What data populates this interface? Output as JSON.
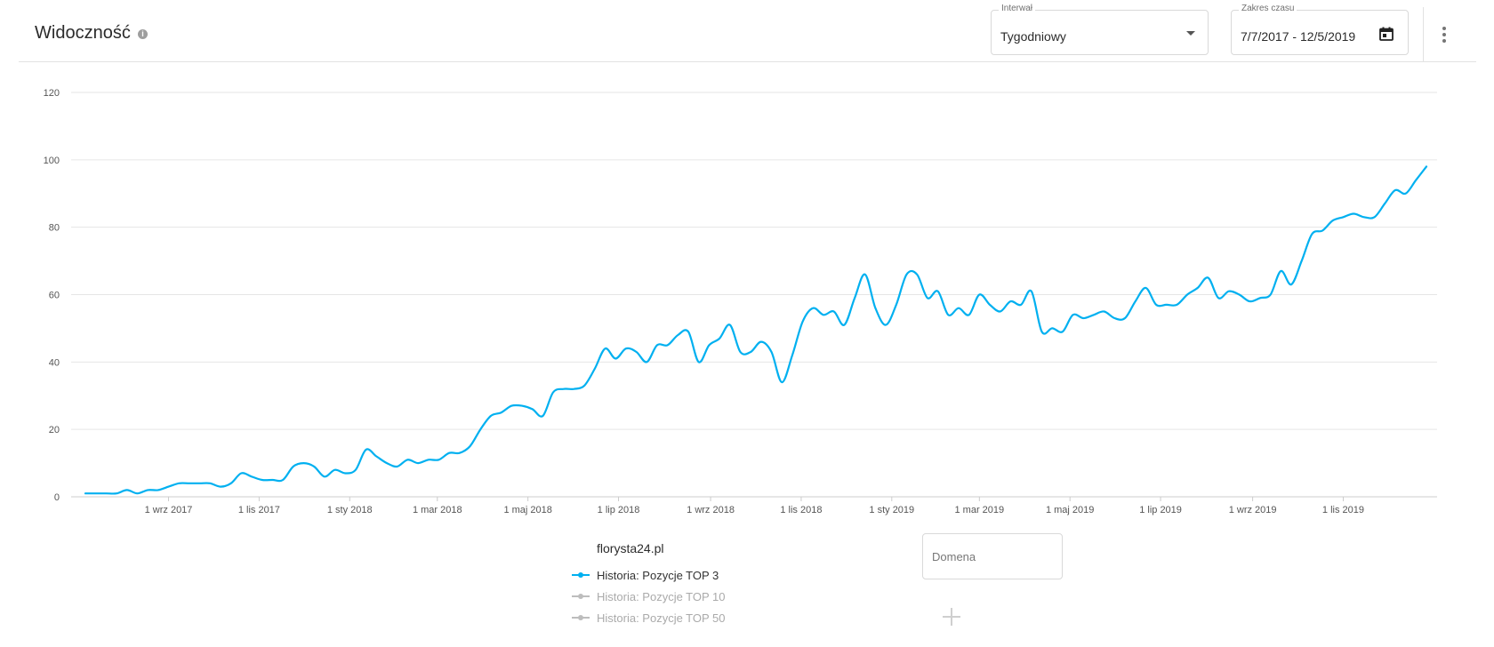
{
  "header": {
    "title": "Widoczność",
    "interval": {
      "legend": "Interwał",
      "value": "Tygodniowy"
    },
    "date_range": {
      "legend": "Zakres czasu",
      "value": "7/7/2017 - 12/5/2019"
    }
  },
  "legend": {
    "title": "florysta24.pl",
    "items": [
      {
        "label": "Historia: Pozycje TOP 3",
        "color": "#00b0f0",
        "active": true
      },
      {
        "label": "Historia: Pozycje TOP 10",
        "color": "#bdbdbd",
        "active": false
      },
      {
        "label": "Historia: Pozycje TOP 50",
        "color": "#bdbdbd",
        "active": false
      }
    ]
  },
  "domain_input": {
    "placeholder": "Domena"
  },
  "colors": {
    "line": "#00b0f0",
    "grid": "#e6e6e6",
    "axis": "#cccccc"
  },
  "icons": {
    "info": "info-icon",
    "dropdown": "chevron-down-icon",
    "calendar": "calendar-icon",
    "more": "more-vertical-icon",
    "add": "plus-icon"
  },
  "chart_data": {
    "type": "line",
    "title": "Widoczność",
    "xlabel": "",
    "ylabel": "",
    "ylim": [
      0,
      120
    ],
    "yticks": [
      0,
      20,
      40,
      60,
      80,
      100,
      120
    ],
    "xlim": [
      "2017-07-07",
      "2019-12-05"
    ],
    "xticks": [
      {
        "label": "1 wrz 2017",
        "date": "2017-09-01"
      },
      {
        "label": "1 lis 2017",
        "date": "2017-11-01"
      },
      {
        "label": "1 sty 2018",
        "date": "2018-01-01"
      },
      {
        "label": "1 mar 2018",
        "date": "2018-03-01"
      },
      {
        "label": "1 maj 2018",
        "date": "2018-05-01"
      },
      {
        "label": "1 lip 2018",
        "date": "2018-07-01"
      },
      {
        "label": "1 wrz 2018",
        "date": "2018-09-01"
      },
      {
        "label": "1 lis 2018",
        "date": "2018-11-01"
      },
      {
        "label": "1 sty 2019",
        "date": "2019-01-01"
      },
      {
        "label": "1 mar 2019",
        "date": "2019-03-01"
      },
      {
        "label": "1 maj 2019",
        "date": "2019-05-01"
      },
      {
        "label": "1 lip 2019",
        "date": "2019-07-01"
      },
      {
        "label": "1 wrz 2019",
        "date": "2019-09-01"
      },
      {
        "label": "1 lis 2019",
        "date": "2019-11-01"
      }
    ],
    "grid": true,
    "series": [
      {
        "name": "Historia: Pozycje TOP 3",
        "points": [
          [
            "2017-07-07",
            1
          ],
          [
            "2017-07-14",
            1
          ],
          [
            "2017-07-21",
            1
          ],
          [
            "2017-07-28",
            1
          ],
          [
            "2017-08-04",
            2
          ],
          [
            "2017-08-11",
            1
          ],
          [
            "2017-08-18",
            2
          ],
          [
            "2017-08-25",
            2
          ],
          [
            "2017-09-01",
            3
          ],
          [
            "2017-09-08",
            4
          ],
          [
            "2017-09-15",
            4
          ],
          [
            "2017-09-22",
            4
          ],
          [
            "2017-09-29",
            4
          ],
          [
            "2017-10-06",
            3
          ],
          [
            "2017-10-13",
            4
          ],
          [
            "2017-10-20",
            7
          ],
          [
            "2017-10-27",
            6
          ],
          [
            "2017-11-03",
            5
          ],
          [
            "2017-11-10",
            5
          ],
          [
            "2017-11-17",
            5
          ],
          [
            "2017-11-24",
            9
          ],
          [
            "2017-12-01",
            10
          ],
          [
            "2017-12-08",
            9
          ],
          [
            "2017-12-15",
            6
          ],
          [
            "2017-12-22",
            8
          ],
          [
            "2017-12-29",
            7
          ],
          [
            "2018-01-05",
            8
          ],
          [
            "2018-01-12",
            14
          ],
          [
            "2018-01-19",
            12
          ],
          [
            "2018-01-26",
            10
          ],
          [
            "2018-02-02",
            9
          ],
          [
            "2018-02-09",
            11
          ],
          [
            "2018-02-16",
            10
          ],
          [
            "2018-02-23",
            11
          ],
          [
            "2018-03-02",
            11
          ],
          [
            "2018-03-09",
            13
          ],
          [
            "2018-03-16",
            13
          ],
          [
            "2018-03-23",
            15
          ],
          [
            "2018-03-30",
            20
          ],
          [
            "2018-04-06",
            24
          ],
          [
            "2018-04-13",
            25
          ],
          [
            "2018-04-20",
            27
          ],
          [
            "2018-04-27",
            27
          ],
          [
            "2018-05-04",
            26
          ],
          [
            "2018-05-11",
            24
          ],
          [
            "2018-05-18",
            31
          ],
          [
            "2018-05-25",
            32
          ],
          [
            "2018-06-01",
            32
          ],
          [
            "2018-06-08",
            33
          ],
          [
            "2018-06-15",
            38
          ],
          [
            "2018-06-22",
            44
          ],
          [
            "2018-06-29",
            41
          ],
          [
            "2018-07-06",
            44
          ],
          [
            "2018-07-13",
            43
          ],
          [
            "2018-07-20",
            40
          ],
          [
            "2018-07-27",
            45
          ],
          [
            "2018-08-03",
            45
          ],
          [
            "2018-08-10",
            48
          ],
          [
            "2018-08-17",
            49
          ],
          [
            "2018-08-24",
            40
          ],
          [
            "2018-08-31",
            45
          ],
          [
            "2018-09-07",
            47
          ],
          [
            "2018-09-14",
            51
          ],
          [
            "2018-09-21",
            43
          ],
          [
            "2018-09-28",
            43
          ],
          [
            "2018-10-05",
            46
          ],
          [
            "2018-10-12",
            43
          ],
          [
            "2018-10-19",
            34
          ],
          [
            "2018-10-26",
            42
          ],
          [
            "2018-11-02",
            52
          ],
          [
            "2018-11-09",
            56
          ],
          [
            "2018-11-16",
            54
          ],
          [
            "2018-11-23",
            55
          ],
          [
            "2018-11-30",
            51
          ],
          [
            "2018-12-07",
            59
          ],
          [
            "2018-12-14",
            66
          ],
          [
            "2018-12-21",
            56
          ],
          [
            "2018-12-28",
            51
          ],
          [
            "2019-01-04",
            57
          ],
          [
            "2019-01-11",
            66
          ],
          [
            "2019-01-18",
            66
          ],
          [
            "2019-01-25",
            59
          ],
          [
            "2019-02-01",
            61
          ],
          [
            "2019-02-08",
            54
          ],
          [
            "2019-02-15",
            56
          ],
          [
            "2019-02-22",
            54
          ],
          [
            "2019-03-01",
            60
          ],
          [
            "2019-03-08",
            57
          ],
          [
            "2019-03-15",
            55
          ],
          [
            "2019-03-22",
            58
          ],
          [
            "2019-03-29",
            57
          ],
          [
            "2019-04-05",
            61
          ],
          [
            "2019-04-12",
            49
          ],
          [
            "2019-04-19",
            50
          ],
          [
            "2019-04-26",
            49
          ],
          [
            "2019-05-03",
            54
          ],
          [
            "2019-05-10",
            53
          ],
          [
            "2019-05-17",
            54
          ],
          [
            "2019-05-24",
            55
          ],
          [
            "2019-05-31",
            53
          ],
          [
            "2019-06-07",
            53
          ],
          [
            "2019-06-14",
            58
          ],
          [
            "2019-06-21",
            62
          ],
          [
            "2019-06-28",
            57
          ],
          [
            "2019-07-05",
            57
          ],
          [
            "2019-07-12",
            57
          ],
          [
            "2019-07-19",
            60
          ],
          [
            "2019-07-26",
            62
          ],
          [
            "2019-08-02",
            65
          ],
          [
            "2019-08-09",
            59
          ],
          [
            "2019-08-16",
            61
          ],
          [
            "2019-08-23",
            60
          ],
          [
            "2019-08-30",
            58
          ],
          [
            "2019-09-06",
            59
          ],
          [
            "2019-09-13",
            60
          ],
          [
            "2019-09-20",
            67
          ],
          [
            "2019-09-27",
            63
          ],
          [
            "2019-10-04",
            70
          ],
          [
            "2019-10-11",
            78
          ],
          [
            "2019-10-18",
            79
          ],
          [
            "2019-10-25",
            82
          ],
          [
            "2019-11-01",
            83
          ],
          [
            "2019-11-08",
            84
          ],
          [
            "2019-11-15",
            83
          ],
          [
            "2019-11-22",
            83
          ],
          [
            "2019-11-29",
            87
          ],
          [
            "2019-12-06",
            91
          ],
          [
            "2019-12-13",
            90
          ],
          [
            "2019-12-20",
            94
          ],
          [
            "2019-12-27",
            98
          ]
        ]
      }
    ]
  }
}
